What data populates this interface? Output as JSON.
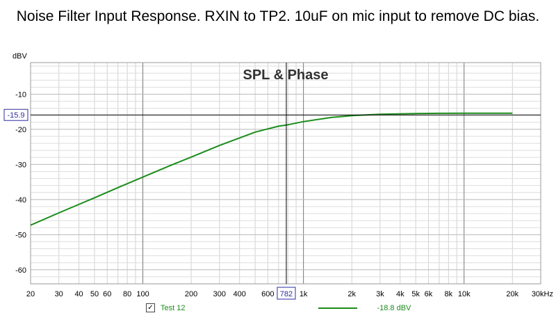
{
  "title": "Noise Filter Input Response. RXIN to TP2. 10uF on mic input to remove DC bias.",
  "chart_data": {
    "type": "line",
    "title": "SPL & Phase",
    "ylabel": "dBV",
    "xlabel": "",
    "x_scale": "log",
    "xlim": [
      20,
      30000
    ],
    "ylim": [
      -64,
      -1
    ],
    "x_tick_labels": [
      "20",
      "30",
      "40",
      "50",
      "60",
      "80",
      "100",
      "200",
      "300",
      "400",
      "600",
      "1k",
      "2k",
      "3k",
      "4k",
      "5k",
      "6k",
      "8k",
      "10k",
      "20k",
      "30kHz"
    ],
    "x_tick_values": [
      20,
      30,
      40,
      50,
      60,
      80,
      100,
      200,
      300,
      400,
      600,
      1000,
      2000,
      3000,
      4000,
      5000,
      6000,
      8000,
      10000,
      20000,
      30000
    ],
    "y_tick_labels": [
      "-10",
      "-20",
      "-30",
      "-40",
      "-50",
      "-60"
    ],
    "y_tick_values": [
      -10,
      -20,
      -30,
      -40,
      -50,
      -60
    ],
    "grid": true,
    "cursor": {
      "x_label": "782",
      "x": 782,
      "y_label": "-15.9",
      "y": -15.9
    },
    "series": [
      {
        "name": "Test 12",
        "color": "#1a8c1a",
        "readout": "-18.8 dBV",
        "x": [
          20,
          30,
          50,
          70,
          100,
          150,
          200,
          300,
          500,
          700,
          782,
          1000,
          1500,
          2000,
          3000,
          5000,
          7000,
          10000,
          15000,
          20000
        ],
        "y": [
          -47.3,
          -43.8,
          -39.5,
          -36.6,
          -33.6,
          -30.2,
          -27.9,
          -24.6,
          -20.8,
          -19.1,
          -18.8,
          -17.8,
          -16.6,
          -16.1,
          -15.7,
          -15.5,
          -15.45,
          -15.4,
          -15.4,
          -15.4
        ]
      }
    ],
    "legend_position": "bottom"
  }
}
